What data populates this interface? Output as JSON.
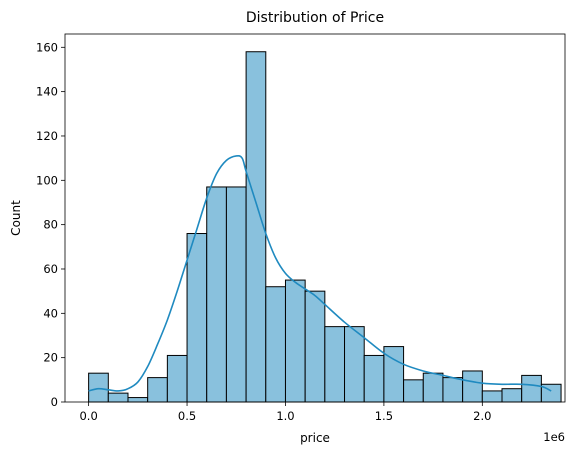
{
  "chart_data": {
    "type": "bar",
    "title": "Distribution of Price",
    "xlabel": "price",
    "ylabel": "Count",
    "x_offset_text": "1e6",
    "xlim": [
      -0.12,
      2.42
    ],
    "ylim": [
      0,
      166
    ],
    "x_ticks": [
      0.0,
      0.5,
      1.0,
      1.5,
      2.0
    ],
    "x_tick_labels": [
      "0.0",
      "0.5",
      "1.0",
      "1.5",
      "2.0"
    ],
    "y_ticks": [
      0,
      20,
      40,
      60,
      80,
      100,
      120,
      140,
      160
    ],
    "y_tick_labels": [
      "0",
      "20",
      "40",
      "60",
      "80",
      "100",
      "120",
      "140",
      "160"
    ],
    "bin_edges": [
      0.0,
      0.1,
      0.2,
      0.3,
      0.4,
      0.5,
      0.6,
      0.7,
      0.8,
      0.9,
      1.0,
      1.1,
      1.2,
      1.3,
      1.4,
      1.5,
      1.6,
      1.7,
      1.8,
      1.9,
      2.0,
      2.1,
      2.2,
      2.3,
      2.4
    ],
    "values": [
      13,
      4,
      2,
      11,
      21,
      76,
      97,
      97,
      158,
      52,
      55,
      50,
      34,
      34,
      21,
      25,
      10,
      13,
      11,
      14,
      5,
      6,
      12,
      8
    ],
    "kde": {
      "x": [
        0.0,
        0.05,
        0.1,
        0.15,
        0.2,
        0.25,
        0.3,
        0.35,
        0.4,
        0.45,
        0.5,
        0.55,
        0.6,
        0.65,
        0.7,
        0.75,
        0.78,
        0.8,
        0.85,
        0.9,
        0.95,
        1.0,
        1.05,
        1.1,
        1.15,
        1.2,
        1.3,
        1.4,
        1.5,
        1.6,
        1.7,
        1.8,
        1.9,
        2.0,
        2.1,
        2.2,
        2.3,
        2.35
      ],
      "y": [
        5,
        6,
        5.5,
        5,
        6,
        9,
        16,
        26,
        37,
        50,
        64,
        78,
        92,
        103,
        109,
        111,
        110,
        104,
        90,
        76,
        65,
        58,
        54,
        51,
        48,
        44,
        36,
        29,
        22,
        17,
        14,
        12,
        10,
        8.5,
        8,
        8,
        7,
        5
      ]
    },
    "bar_color": "#89c1dd",
    "line_color": "#1f8ac0",
    "grid": false,
    "legend": "none"
  }
}
